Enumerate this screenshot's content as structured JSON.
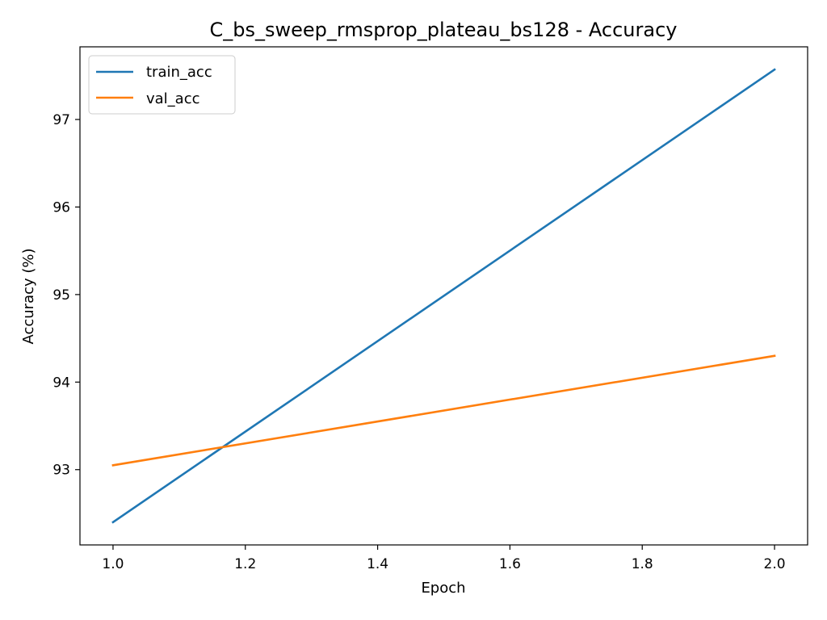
{
  "chart_data": {
    "type": "line",
    "title": "C_bs_sweep_rmsprop_plateau_bs128 - Accuracy",
    "xlabel": "Epoch",
    "ylabel": "Accuracy (%)",
    "xlim": [
      0.95,
      2.05
    ],
    "ylim": [
      92.14,
      97.83
    ],
    "xticks": [
      1.0,
      1.2,
      1.4,
      1.6,
      1.8,
      2.0
    ],
    "xtick_labels": [
      "1.0",
      "1.2",
      "1.4",
      "1.6",
      "1.8",
      "2.0"
    ],
    "yticks": [
      93,
      94,
      95,
      96,
      97
    ],
    "ytick_labels": [
      "93",
      "94",
      "95",
      "96",
      "97"
    ],
    "grid": false,
    "legend_position": "top-left",
    "series": [
      {
        "name": "train_acc",
        "color": "#1f77b4",
        "x": [
          1.0,
          2.0
        ],
        "y": [
          92.4,
          97.57
        ]
      },
      {
        "name": "val_acc",
        "color": "#ff7f0e",
        "x": [
          1.0,
          2.0
        ],
        "y": [
          93.05,
          94.3
        ]
      }
    ]
  }
}
